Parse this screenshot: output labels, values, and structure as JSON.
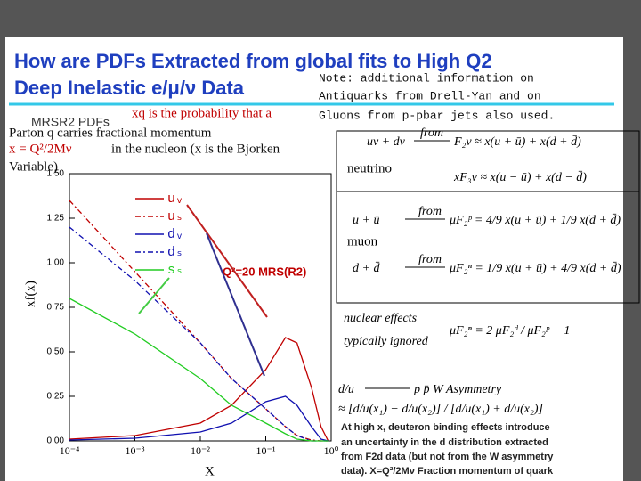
{
  "header": {
    "title": "How are PDFs Extracted from global fits to High Q2",
    "subtitle": "Deep Inelastic e/μ/ν Data"
  },
  "note": [
    "Note: additional information on",
    "Antiquarks from Drell-Yan and on",
    "Gluons from  p-pbar jets also used."
  ],
  "intro": {
    "plot_name": "MRSR2 PDFs",
    "line1_red": "xq is the probability that a",
    "line2": "Parton q carries  fractional  momentum",
    "line3_red": "x = Q²/2Mν",
    "line3": "in the nucleon (x is the Bjorken",
    "line4": "Variable)"
  },
  "neutrino": {
    "label": "neutrino",
    "eq1_left": "uν + dν",
    "eq1_right": "F₂ν ≈ x(u + ū) + x(d + d̄)",
    "eq2_right": "xF₃ν ≈ x(u − ū) + x(d − d̄)",
    "from": "from"
  },
  "muon": {
    "label": "muon",
    "eq1_left": "u + ū",
    "eq1_right": "μF₂ᵖ = 4/9 x(u + ū) + 1/9 x(d + d̄)",
    "eq2_left": "d + d̄",
    "eq2_right": "μF₂ⁿ = 1/9 x(u + ū) + 4/9 x(d + d̄)",
    "from": "from"
  },
  "nuclear": {
    "line1": "nuclear effects",
    "line2": "typically ignored",
    "eq": "μF₂ⁿ = 2 μF₂ᵈ / μF₂ᵖ − 1"
  },
  "wasym": {
    "left": "d/u",
    "process": "p p̄ W Asymmetry",
    "eq": "≈ [d/u(x₁) − d/u(x₂)] / [d/u(x₁) + d/u(x₂)]"
  },
  "footer": [
    "At high x, deuteron binding effects introduce",
    "an uncertainty in the d distribution extracted",
    "from F2d data (but not from the W asymmetry",
    "data).  X=Q²/2Mν  Fraction momentum of quark"
  ],
  "chart_data": {
    "type": "line",
    "x_label": "X",
    "y_label": "xf(x)",
    "annotation": "Q²=20 MRS(R2)",
    "x": [
      0.0001,
      0.001,
      0.01,
      0.03,
      0.1,
      0.2,
      0.3,
      0.5,
      0.7,
      0.9
    ],
    "series": [
      {
        "name": "uᵥ",
        "color": "#c00000",
        "dash": "",
        "values": [
          0.01,
          0.03,
          0.1,
          0.2,
          0.4,
          0.58,
          0.55,
          0.3,
          0.08,
          0
        ]
      },
      {
        "name": "uₛ",
        "color": "#c00000",
        "dash": "6 3 2 3",
        "values": [
          1.35,
          0.95,
          0.55,
          0.35,
          0.18,
          0.08,
          0.03,
          0.005,
          0,
          0
        ]
      },
      {
        "name": "dᵥ",
        "color": "#1010b0",
        "dash": "",
        "values": [
          0.005,
          0.015,
          0.05,
          0.1,
          0.22,
          0.25,
          0.2,
          0.08,
          0.01,
          0
        ]
      },
      {
        "name": "dₛ",
        "color": "#1010b0",
        "dash": "6 3 2 3",
        "values": [
          1.2,
          0.9,
          0.55,
          0.35,
          0.18,
          0.08,
          0.03,
          0,
          0,
          0
        ]
      },
      {
        "name": "sₛ",
        "color": "#22cc22",
        "dash": "",
        "values": [
          0.8,
          0.6,
          0.35,
          0.2,
          0.1,
          0.04,
          0.01,
          0,
          0,
          0
        ]
      }
    ],
    "xlim": [
      0.0001,
      1
    ],
    "xscale": "log",
    "xticks": [
      {
        "value": 0.0001,
        "label": "10⁻⁴"
      },
      {
        "value": 0.001,
        "label": "10⁻³"
      },
      {
        "value": 0.01,
        "label": "10⁻²"
      },
      {
        "value": 0.1,
        "label": "10⁻¹"
      },
      {
        "value": 1,
        "label": "10⁰"
      }
    ],
    "ylim": [
      0,
      1.5
    ],
    "yticks": [
      {
        "value": 0,
        "label": "0.00"
      },
      {
        "value": 0.25,
        "label": "0.25"
      },
      {
        "value": 0.5,
        "label": "0.50"
      },
      {
        "value": 0.75,
        "label": "0.75"
      },
      {
        "value": 1,
        "label": "1.00"
      },
      {
        "value": 1.25,
        "label": "1.25"
      },
      {
        "value": 1.5,
        "label": "1.50"
      }
    ]
  }
}
